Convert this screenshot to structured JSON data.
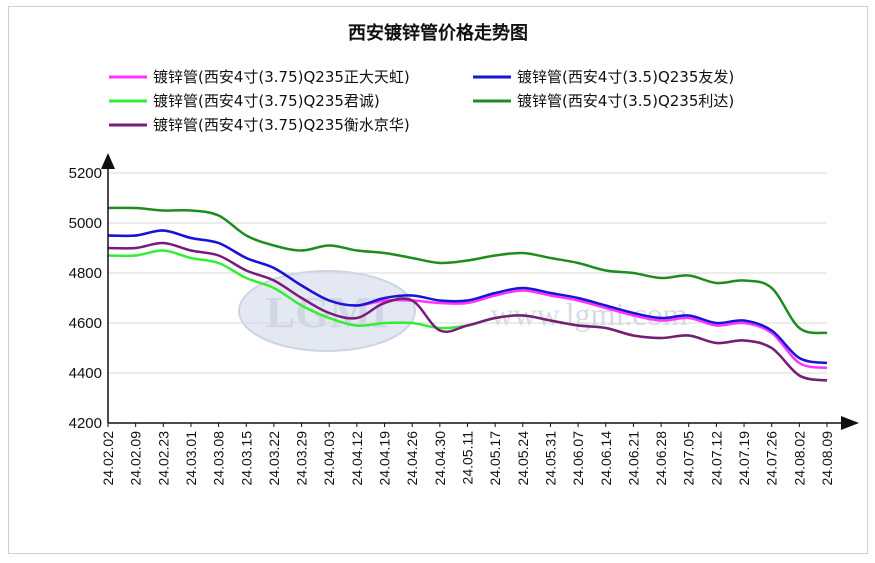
{
  "chart_data": {
    "type": "line",
    "title": "西安镀锌管价格走势图",
    "xlabel": "",
    "ylabel": "",
    "ylim": [
      4200,
      5200
    ],
    "yticks": [
      4200,
      4400,
      4600,
      4800,
      5000,
      5200
    ],
    "grid": true,
    "legend_position": "top",
    "watermark": {
      "logo": "LGMI",
      "url": "www.lgmi.com"
    },
    "x": [
      "24.02.02",
      "24.02.09",
      "24.02.23",
      "24.03.01",
      "24.03.08",
      "24.03.15",
      "24.03.22",
      "24.03.29",
      "24.04.03",
      "24.04.12",
      "24.04.19",
      "24.04.26",
      "24.04.30",
      "24.05.11",
      "24.05.17",
      "24.05.24",
      "24.05.31",
      "24.06.07",
      "24.06.14",
      "24.06.21",
      "24.06.28",
      "24.07.05",
      "24.07.12",
      "24.07.19",
      "24.07.26",
      "24.08.02",
      "24.08.09"
    ],
    "series": [
      {
        "name": "镀锌管(西安4寸(3.75)Q235正大天虹)",
        "color": "#ff33ff",
        "values": [
          4950,
          4950,
          4970,
          4940,
          4920,
          4860,
          4820,
          4750,
          4690,
          4670,
          4690,
          4690,
          4680,
          4680,
          4710,
          4730,
          4710,
          4690,
          4660,
          4630,
          4610,
          4620,
          4590,
          4600,
          4560,
          4440,
          4420
        ]
      },
      {
        "name": "镀锌管(西安4寸(3.5)Q235友发)",
        "color": "#1515d6",
        "values": [
          4950,
          4950,
          4970,
          4940,
          4920,
          4860,
          4820,
          4750,
          4690,
          4670,
          4700,
          4710,
          4690,
          4690,
          4720,
          4740,
          4720,
          4700,
          4670,
          4640,
          4620,
          4630,
          4600,
          4610,
          4570,
          4460,
          4440
        ]
      },
      {
        "name": "镀锌管(西安4寸(3.75)Q235君诚)",
        "color": "#33ee33",
        "values": [
          4870,
          4870,
          4890,
          4860,
          4840,
          4780,
          4740,
          4670,
          4620,
          4590,
          4600,
          4600,
          4580,
          4590,
          4620,
          4630,
          4610,
          4590,
          4580,
          4550,
          4540,
          4550,
          4520,
          4530,
          4500,
          4390,
          4370
        ]
      },
      {
        "name": "镀锌管(西安4寸(3.5)Q235利达)",
        "color": "#1e8c1e",
        "values": [
          5060,
          5060,
          5050,
          5050,
          5030,
          4950,
          4910,
          4890,
          4910,
          4890,
          4880,
          4860,
          4840,
          4850,
          4870,
          4880,
          4860,
          4840,
          4810,
          4800,
          4780,
          4790,
          4760,
          4770,
          4740,
          4580,
          4560
        ]
      },
      {
        "name": "镀锌管(西安4寸(3.75)Q235衡水京华)",
        "color": "#7a1a7a",
        "values": [
          4900,
          4900,
          4920,
          4890,
          4870,
          4810,
          4770,
          4700,
          4640,
          4620,
          4680,
          4690,
          4570,
          4590,
          4620,
          4630,
          4610,
          4590,
          4580,
          4550,
          4540,
          4550,
          4520,
          4530,
          4500,
          4390,
          4370
        ]
      }
    ]
  }
}
